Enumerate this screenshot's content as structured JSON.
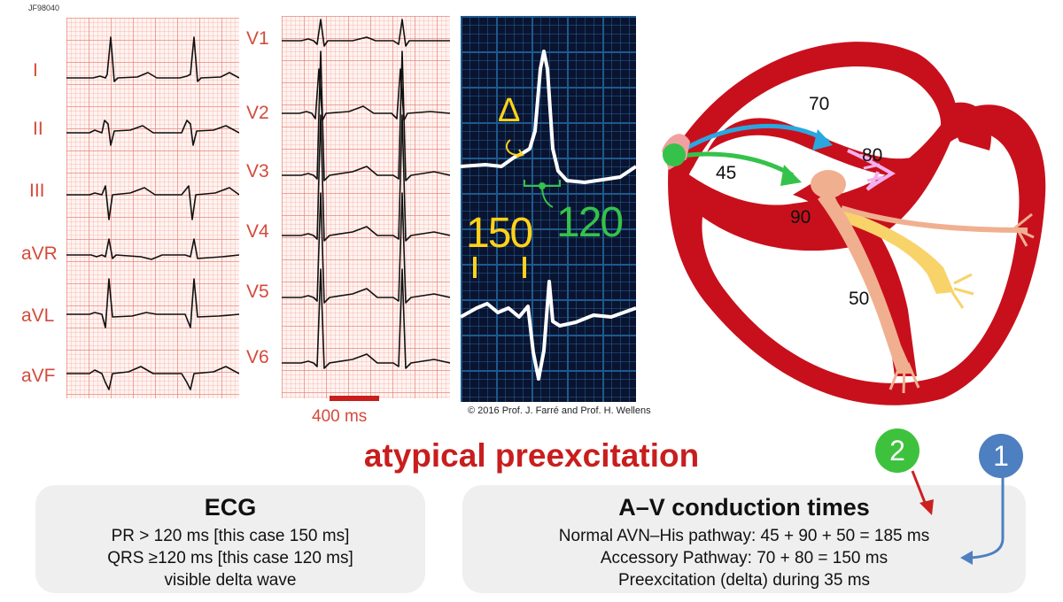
{
  "figure_id": "JF98040",
  "limb_leads": [
    "I",
    "II",
    "III",
    "aVR",
    "aVL",
    "aVF"
  ],
  "chest_leads": [
    "V1",
    "V2",
    "V3",
    "V4",
    "V5",
    "V6"
  ],
  "scale_bar_label": "400 ms",
  "monitor": {
    "delta_symbol": "Δ",
    "pr_value": "150",
    "qrs_value": "120"
  },
  "copyright": "© 2016 Prof. J. Farré and Prof. H. Wellens",
  "heart": {
    "t70": "70",
    "t80": "80",
    "t45": "45",
    "t90": "90",
    "t50": "50"
  },
  "title": "atypical preexcitation",
  "ecg_box": {
    "heading": "ECG",
    "lines": [
      "PR > 120 ms [this case 150 ms]",
      "QRS ≥120 ms [this case 120 ms]",
      "visible delta wave"
    ]
  },
  "av_box": {
    "heading": "A–V conduction times",
    "lines": [
      "Normal AVN–His pathway: 45 + 90 + 50 = 185 ms",
      "Accessory Pathway: 70 + 80 = 150 ms",
      "Preexcitation (delta) during 35 ms"
    ]
  },
  "badges": {
    "green": "2",
    "blue": "1"
  },
  "colors": {
    "title_red": "#c81e1e",
    "lead_label": "#d44a3b",
    "badge_green": "#3ec23e",
    "badge_blue": "#4e7fc0",
    "monitor_bg": "#0a1430",
    "heart_red": "#c8101c"
  }
}
